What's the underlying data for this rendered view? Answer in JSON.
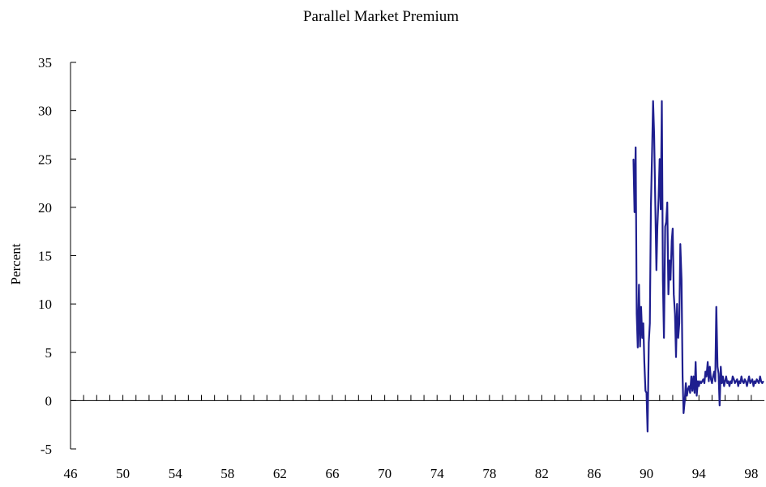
{
  "chart_data": {
    "type": "line",
    "title": "Parallel Market Premium",
    "xlabel": "",
    "ylabel": "Percent",
    "xlim": [
      1946,
      1999
    ],
    "ylim": [
      -5,
      35
    ],
    "y_ticks": [
      "-5",
      "0",
      "5",
      "10",
      "15",
      "20",
      "25",
      "30",
      "35"
    ],
    "x_ticks": [
      "46",
      "50",
      "54",
      "58",
      "62",
      "66",
      "70",
      "74",
      "78",
      "82",
      "86",
      "90",
      "94",
      "98"
    ],
    "grid": false,
    "legend": "none",
    "line_color": "#1f1f8f",
    "series": [
      {
        "x": [
          1989.0,
          1989.08,
          1989.17,
          1989.25,
          1989.33,
          1989.42,
          1989.5,
          1989.58,
          1989.67,
          1989.75,
          1989.83,
          1989.92,
          1990.0,
          1990.08,
          1990.17,
          1990.25,
          1990.33,
          1990.42,
          1990.5,
          1990.58,
          1990.67,
          1990.75,
          1990.83,
          1990.92,
          1991.0,
          1991.08,
          1991.17,
          1991.25,
          1991.33,
          1991.42,
          1991.5,
          1991.58,
          1991.67,
          1991.75,
          1991.83,
          1991.92,
          1992.0,
          1992.08,
          1992.17,
          1992.25,
          1992.33,
          1992.42,
          1992.5,
          1992.58,
          1992.67,
          1992.75,
          1992.83,
          1992.92,
          1993.0,
          1993.08,
          1993.17,
          1993.25,
          1993.33,
          1993.42,
          1993.5,
          1993.58,
          1993.67,
          1993.75,
          1993.83,
          1993.92,
          1994.0,
          1994.08,
          1994.17,
          1994.25,
          1994.33,
          1994.42,
          1994.5,
          1994.58,
          1994.67,
          1994.75,
          1994.83,
          1994.92,
          1995.0,
          1995.08,
          1995.17,
          1995.25,
          1995.33,
          1995.42,
          1995.5,
          1995.58,
          1995.67,
          1995.75,
          1995.83,
          1995.92,
          1996.0,
          1996.08,
          1996.17,
          1996.25,
          1996.33,
          1996.42,
          1996.5,
          1996.58,
          1996.67,
          1996.75,
          1996.83,
          1996.92,
          1997.0,
          1997.08,
          1997.17,
          1997.25,
          1997.33,
          1997.42,
          1997.5,
          1997.58,
          1997.67,
          1997.75,
          1997.83,
          1997.92,
          1998.0,
          1998.08,
          1998.17,
          1998.25,
          1998.33,
          1998.42,
          1998.5,
          1998.58,
          1998.67,
          1998.75,
          1998.83,
          1998.92
        ],
        "values": [
          25.0,
          19.5,
          26.2,
          9.0,
          5.5,
          12.0,
          5.6,
          9.7,
          6.5,
          8.0,
          4.0,
          1.0,
          0.8,
          -3.2,
          6.0,
          8.0,
          20.0,
          25.5,
          31.0,
          27.5,
          20.0,
          13.5,
          18.0,
          21.0,
          25.0,
          19.8,
          31.0,
          12.5,
          6.5,
          18.0,
          18.5,
          20.5,
          11.0,
          14.5,
          12.5,
          16.5,
          17.8,
          11.0,
          9.0,
          4.5,
          10.0,
          6.5,
          8.0,
          16.2,
          12.5,
          2.5,
          -1.3,
          0.0,
          1.8,
          0.5,
          1.2,
          1.5,
          0.8,
          2.5,
          1.0,
          2.5,
          0.8,
          4.0,
          0.5,
          2.0,
          1.5,
          2.0,
          1.8,
          2.0,
          2.2,
          1.8,
          3.0,
          2.5,
          4.0,
          2.0,
          3.5,
          2.2,
          1.8,
          2.5,
          3.0,
          2.0,
          9.7,
          3.5,
          2.8,
          -0.5,
          3.5,
          1.8,
          2.5,
          1.5,
          2.0,
          2.5,
          1.8,
          2.0,
          1.5,
          2.0,
          1.8,
          2.5,
          2.2,
          1.8,
          2.0,
          2.2,
          1.5,
          2.0,
          1.8,
          2.5,
          2.0,
          1.8,
          2.2,
          2.0,
          1.5,
          2.0,
          2.5,
          1.8,
          2.0,
          2.2,
          1.5,
          2.0,
          1.8,
          2.2,
          2.0,
          1.8,
          2.5,
          2.0,
          1.8,
          2.0
        ]
      }
    ]
  }
}
